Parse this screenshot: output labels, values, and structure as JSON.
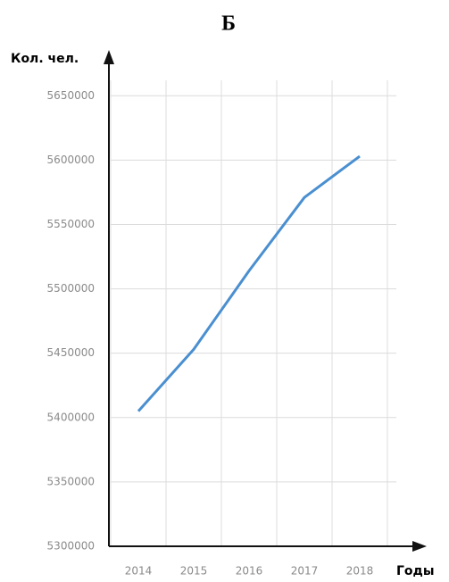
{
  "chart_data": {
    "type": "line",
    "title": "Б",
    "y_label": "Кол. чел.",
    "x_label": "Годы",
    "categories": [
      "2014",
      "2015",
      "2016",
      "2017",
      "2018"
    ],
    "series": [
      {
        "name": "Кол. чел.",
        "color": "#4a8fd0",
        "values": [
          5405000,
          5453000,
          5514000,
          5571000,
          5603000
        ]
      }
    ],
    "ylim": [
      5300000,
      5680000
    ],
    "yticks": [
      5300000,
      5350000,
      5400000,
      5450000,
      5500000,
      5550000,
      5600000,
      5650000
    ],
    "grid": true
  }
}
